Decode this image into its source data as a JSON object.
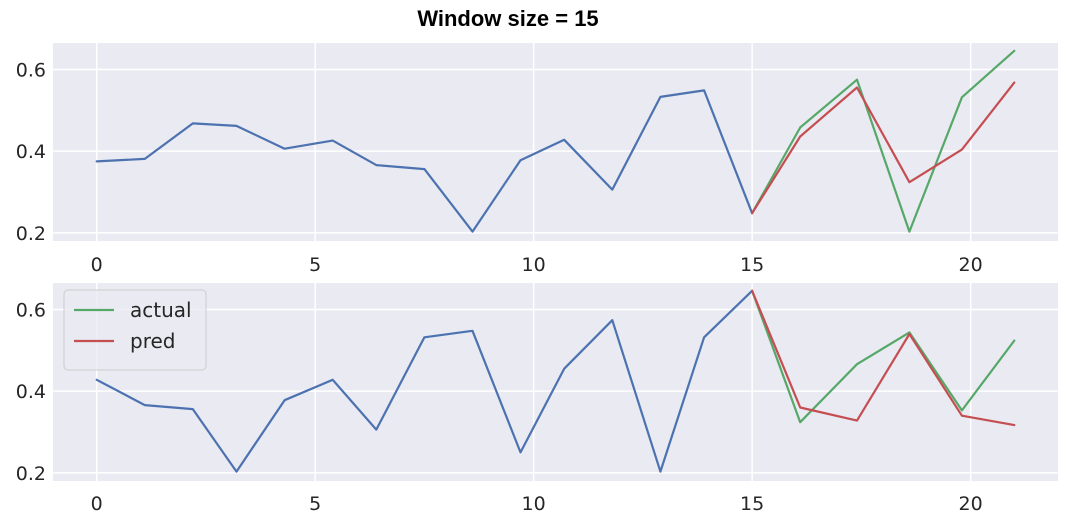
{
  "title": "Window size = 15",
  "colors": {
    "background": "#EAEAF2",
    "grid": "#FFFFFF",
    "history": "#4C72B0",
    "actual": "#55A868",
    "pred": "#C44E52"
  },
  "chart_data": [
    {
      "type": "line",
      "title": "",
      "xlim": [
        -1,
        22
      ],
      "ylim": [
        0.18,
        0.665
      ],
      "xticks": [
        0,
        5,
        10,
        15,
        20
      ],
      "yticks": [
        0.2,
        0.4,
        0.6
      ],
      "grid": true,
      "legend": null,
      "series": [
        {
          "key": "history",
          "x": [
            0,
            1.1,
            2.2,
            3.2,
            4.3,
            5.4,
            6.4,
            7.5,
            8.6,
            9.7,
            10.7,
            11.8,
            12.9,
            13.9,
            15
          ],
          "values": [
            0.375,
            0.381,
            0.468,
            0.462,
            0.406,
            0.426,
            0.366,
            0.356,
            0.203,
            0.378,
            0.428,
            0.306,
            0.533,
            0.549,
            0.248
          ]
        },
        {
          "key": "actual",
          "x": [
            15,
            16.1,
            17.4,
            18.6,
            19.8,
            21
          ],
          "values": [
            0.248,
            0.458,
            0.575,
            0.203,
            0.532,
            0.646
          ]
        },
        {
          "key": "pred",
          "x": [
            15,
            16.1,
            17.4,
            18.6,
            19.8,
            21
          ],
          "values": [
            0.248,
            0.436,
            0.556,
            0.324,
            0.404,
            0.568
          ]
        }
      ]
    },
    {
      "type": "line",
      "title": "",
      "xlim": [
        -1,
        22
      ],
      "ylim": [
        0.18,
        0.665
      ],
      "xticks": [
        0,
        5,
        10,
        15,
        20
      ],
      "yticks": [
        0.2,
        0.4,
        0.6
      ],
      "grid": true,
      "legend": "top-left",
      "series": [
        {
          "key": "history",
          "x": [
            0,
            1.1,
            2.2,
            3.2,
            4.3,
            5.4,
            6.4,
            7.5,
            8.6,
            9.7,
            10.7,
            11.8,
            12.9,
            13.9,
            15
          ],
          "values": [
            0.428,
            0.366,
            0.356,
            0.203,
            0.378,
            0.428,
            0.306,
            0.532,
            0.548,
            0.25,
            0.455,
            0.574,
            0.203,
            0.532,
            0.646
          ]
        },
        {
          "key": "actual",
          "name": "actual",
          "x": [
            15,
            16.1,
            17.4,
            18.6,
            19.8,
            21
          ],
          "values": [
            0.646,
            0.324,
            0.466,
            0.544,
            0.353,
            0.524
          ]
        },
        {
          "key": "pred",
          "name": "pred",
          "x": [
            15,
            16.1,
            17.4,
            18.6,
            19.8,
            21
          ],
          "values": [
            0.646,
            0.36,
            0.328,
            0.54,
            0.34,
            0.317
          ]
        }
      ]
    }
  ]
}
